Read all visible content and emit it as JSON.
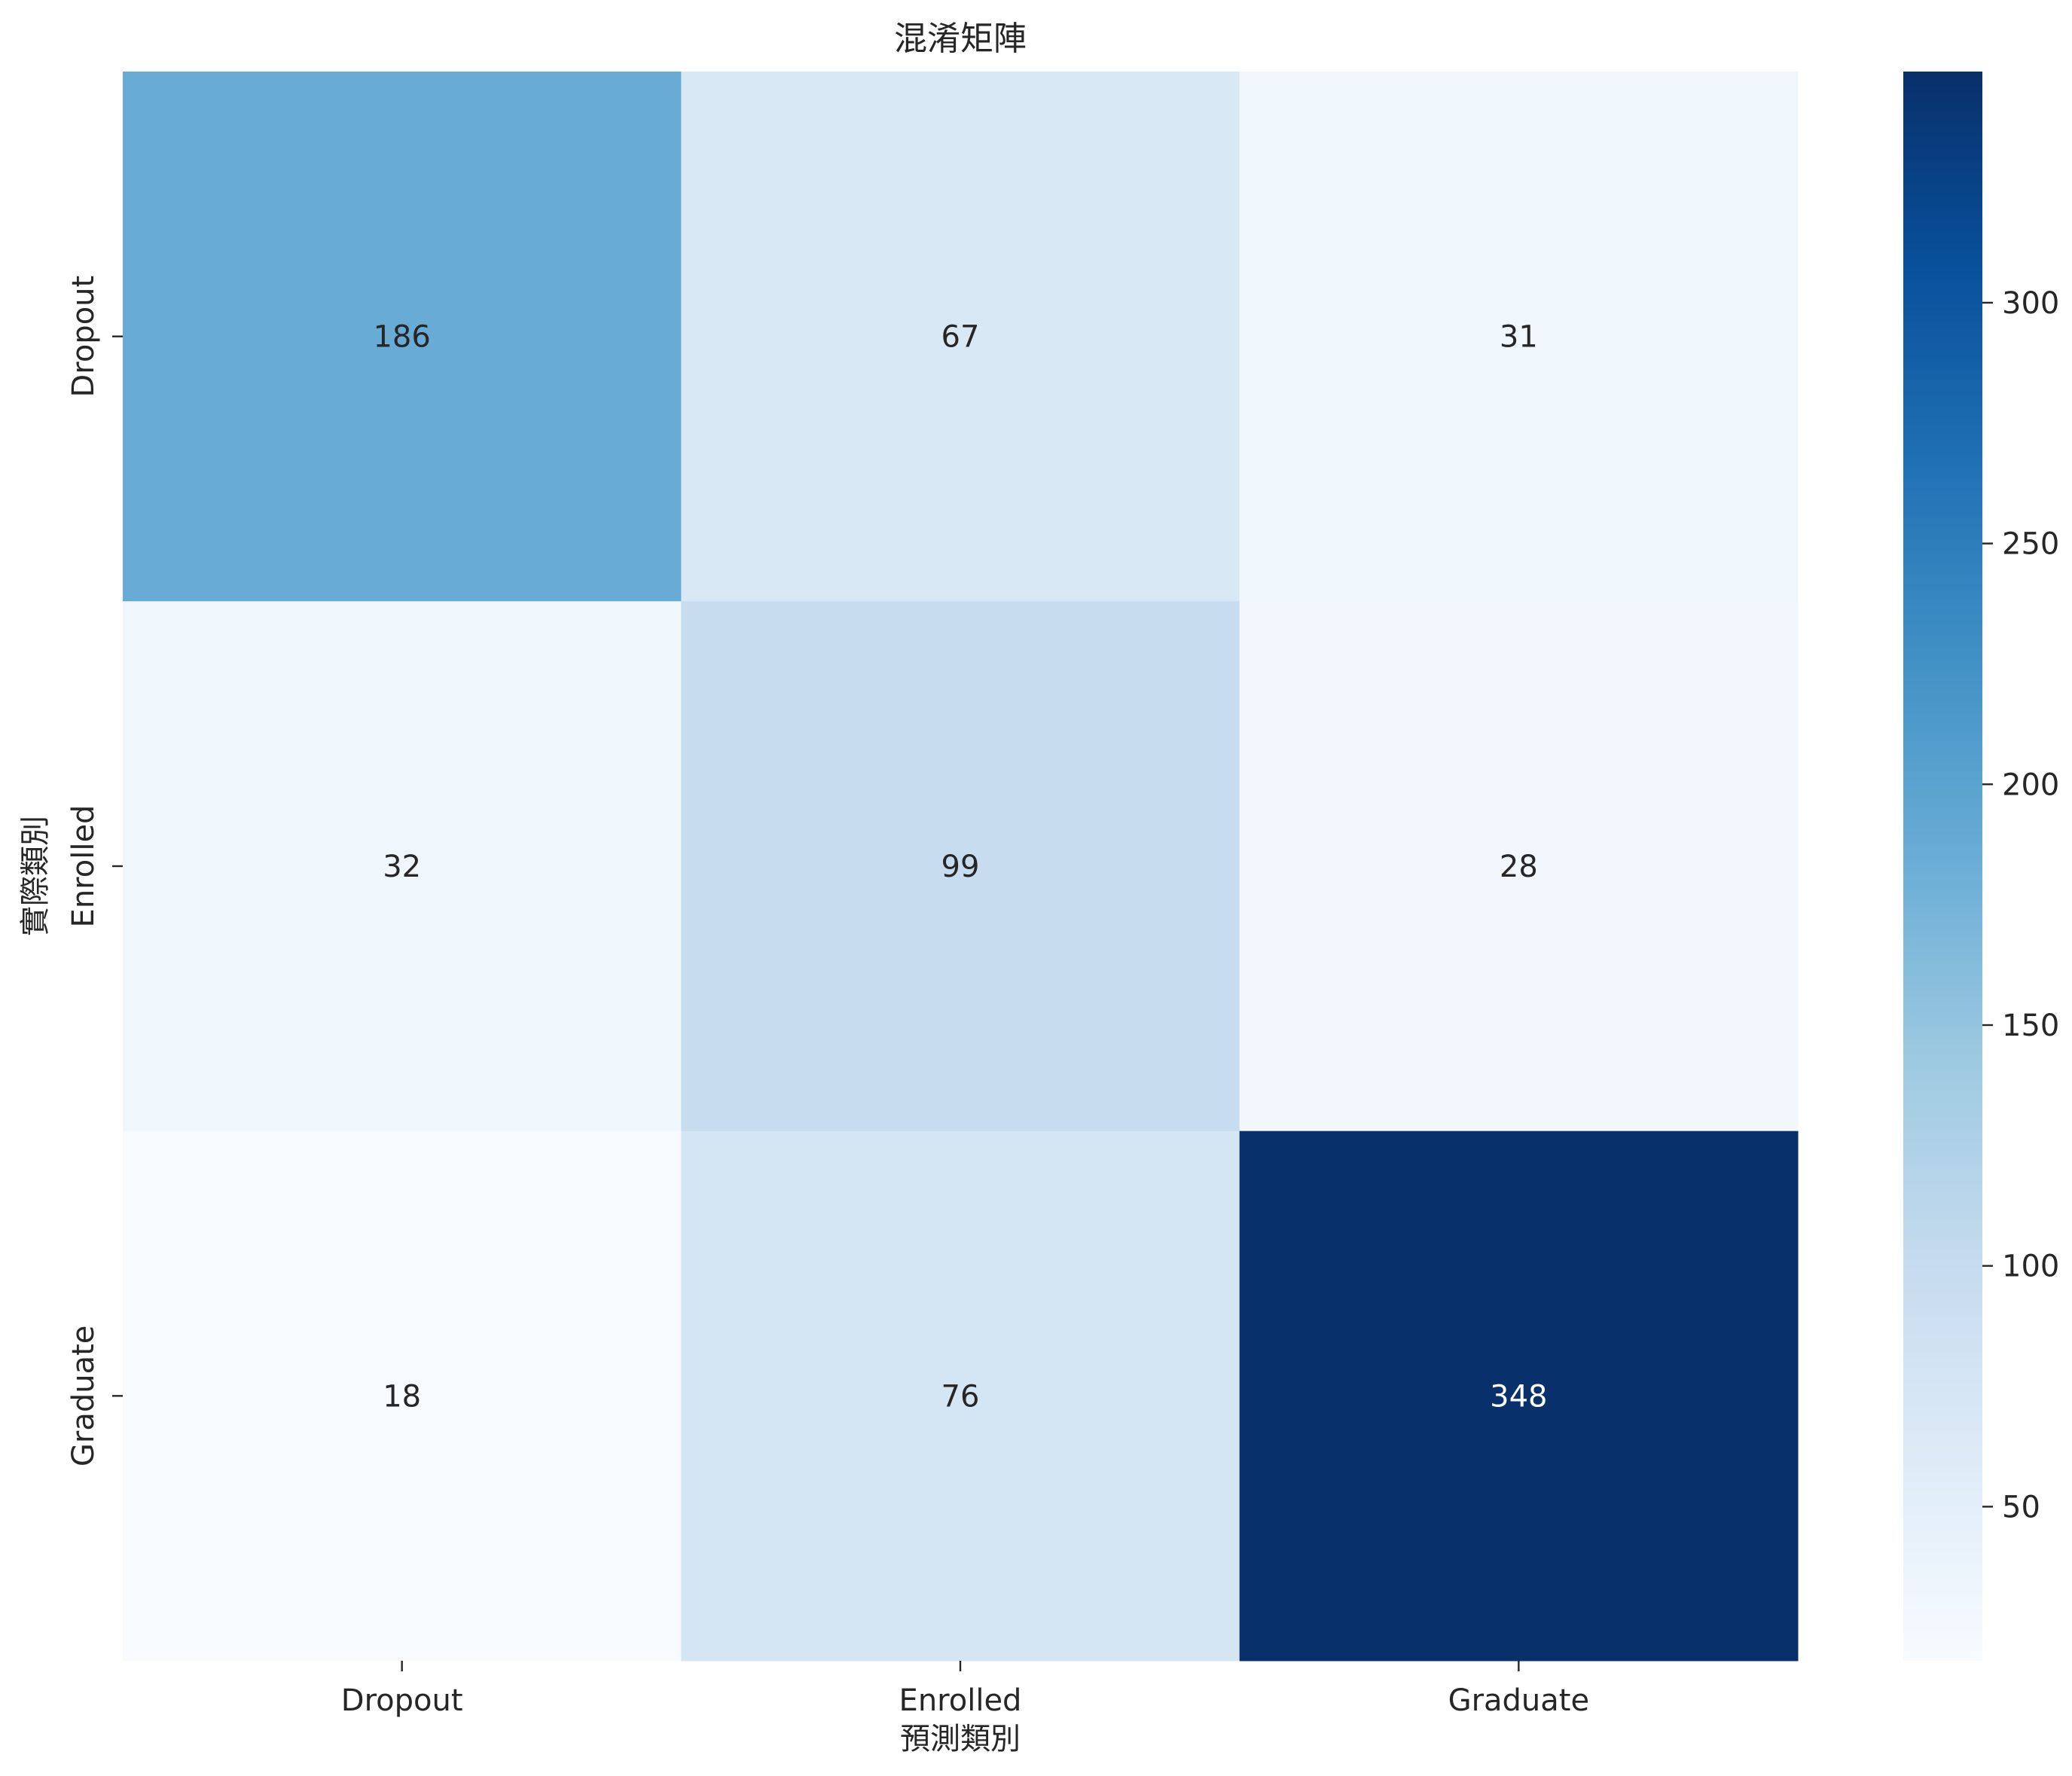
{
  "chart_data": {
    "type": "heatmap",
    "title": "混淆矩陣",
    "xlabel": "預測類別",
    "ylabel": "實際類別",
    "x_categories": [
      "Dropout",
      "Enrolled",
      "Graduate"
    ],
    "y_categories": [
      "Dropout",
      "Enrolled",
      "Graduate"
    ],
    "values": [
      [
        186,
        67,
        31
      ],
      [
        32,
        99,
        28
      ],
      [
        18,
        76,
        348
      ]
    ],
    "colorbar": {
      "min": 18,
      "max": 348,
      "ticks": [
        50,
        100,
        150,
        200,
        250,
        300
      ]
    },
    "colormap": "Blues",
    "legend": "colorbar-right",
    "grid": false
  }
}
